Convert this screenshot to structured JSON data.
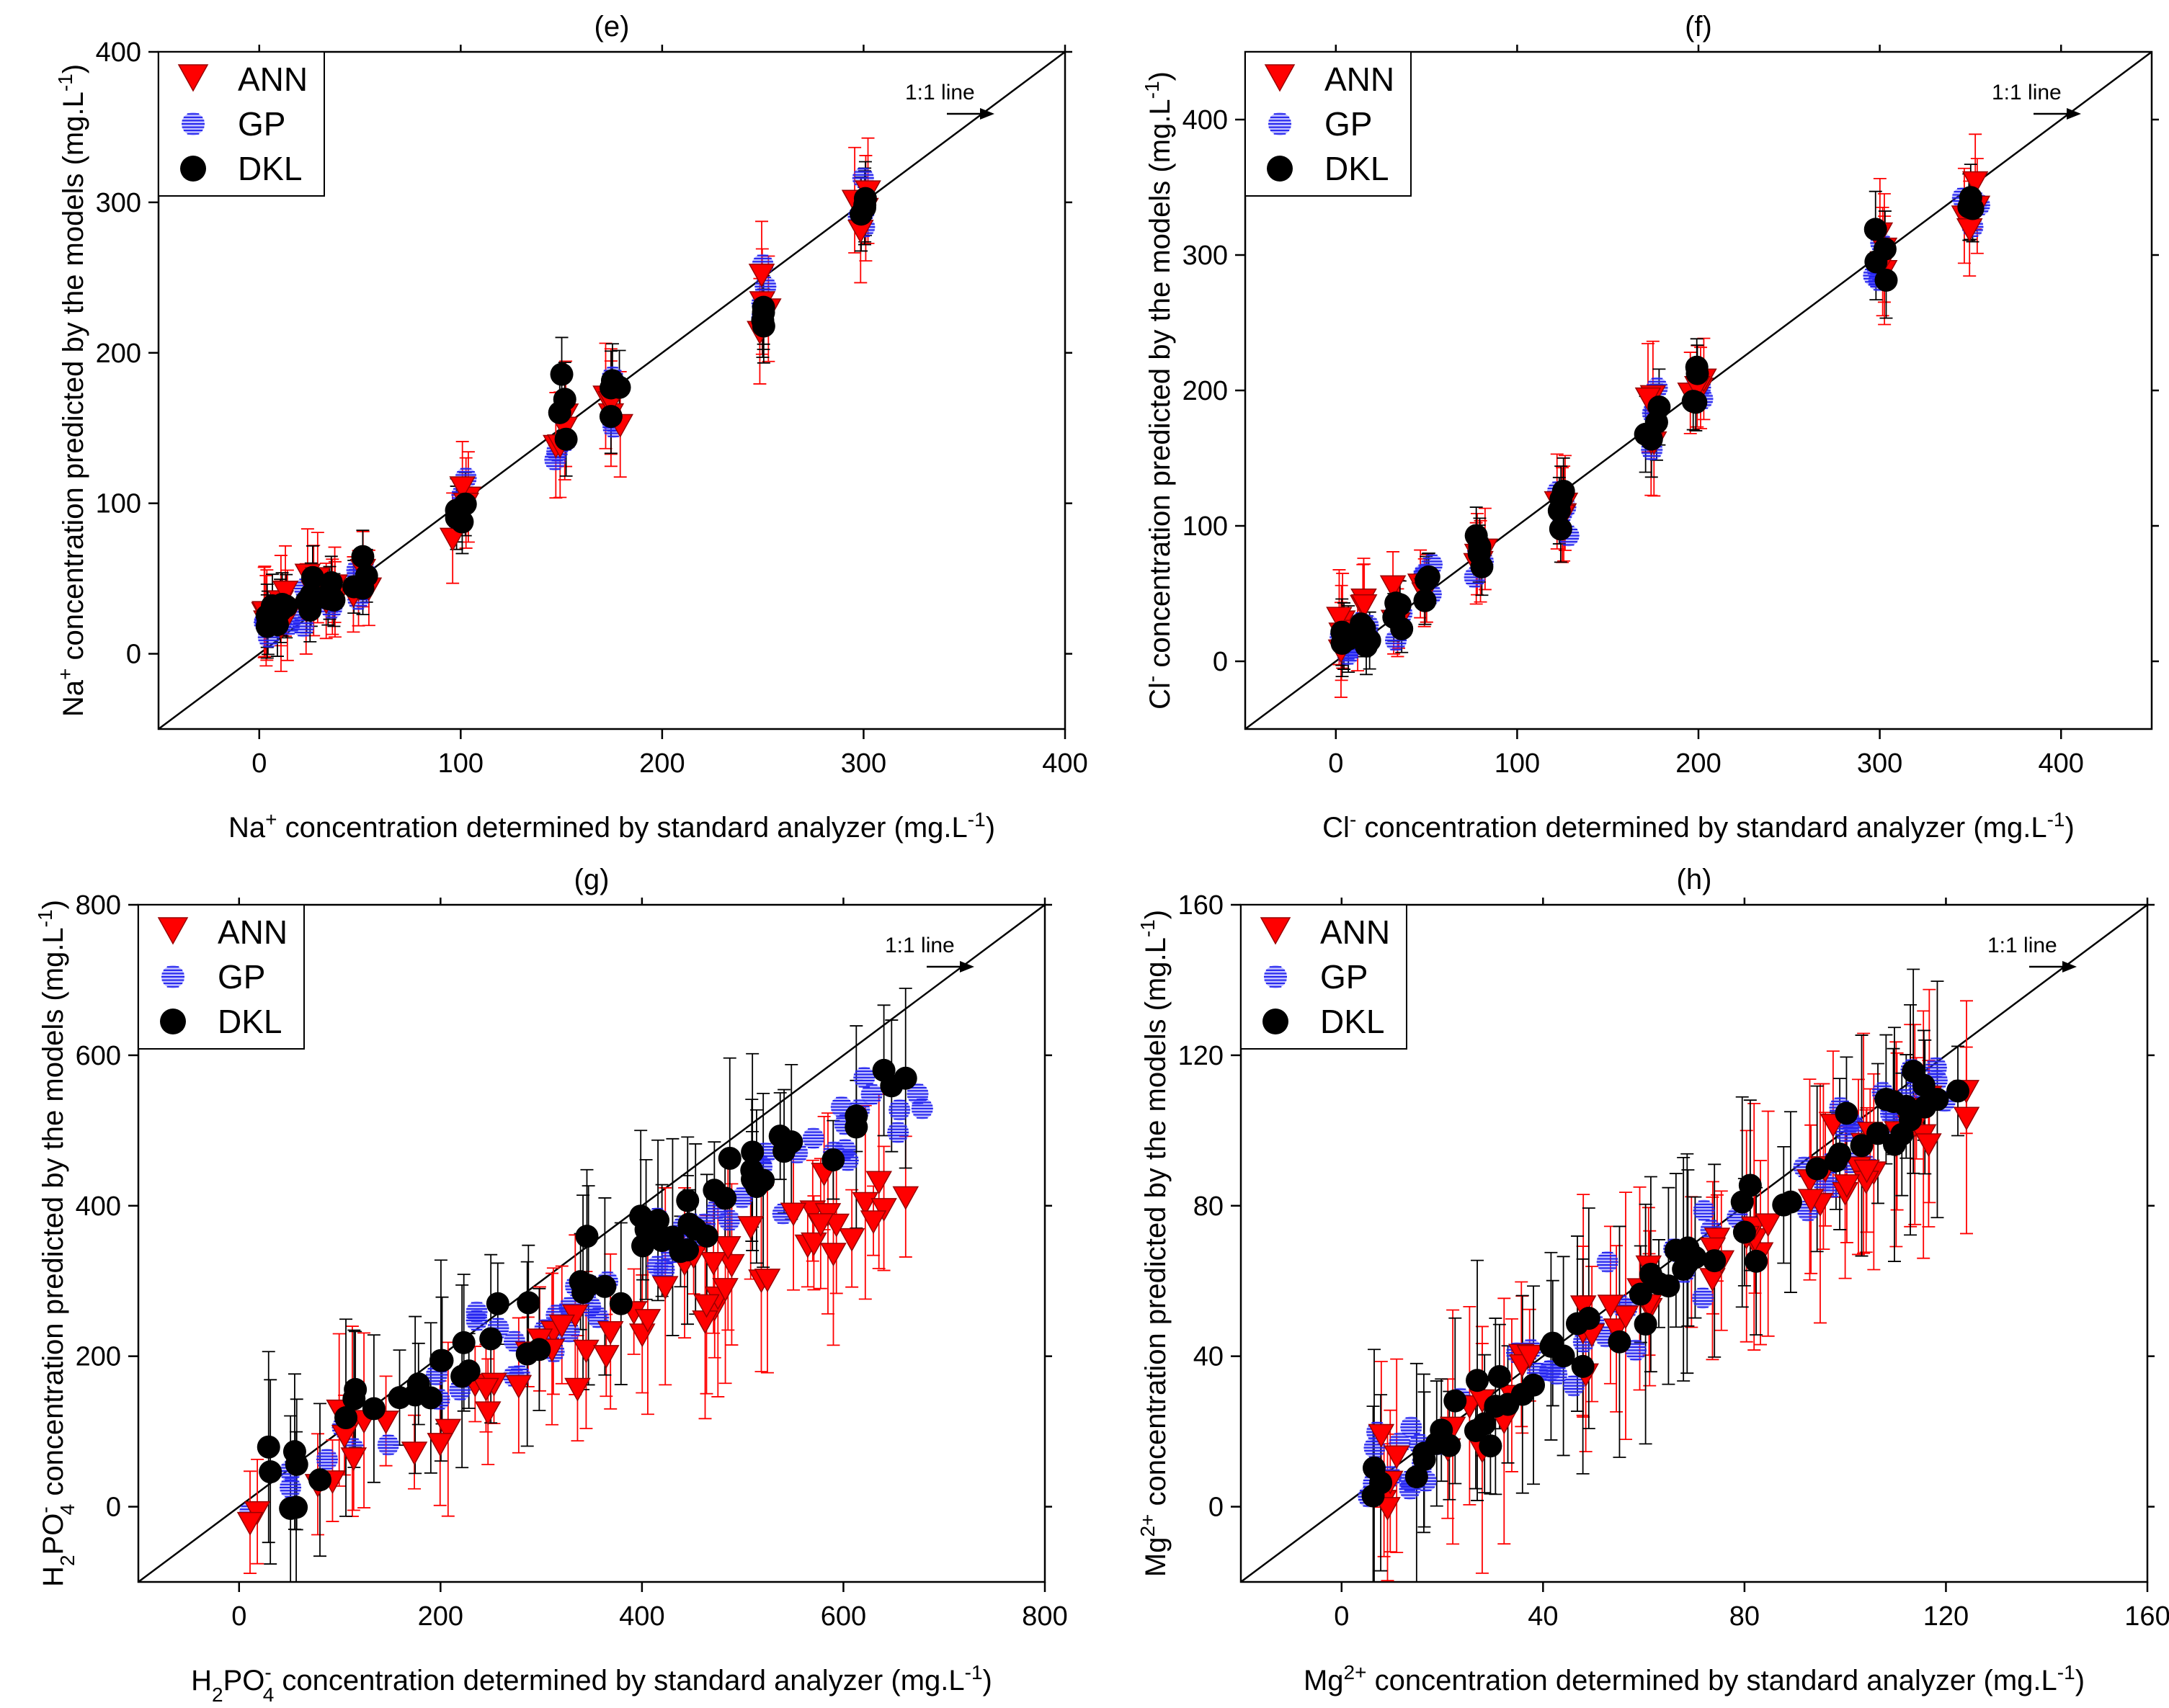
{
  "figure": {
    "description_free": true
  },
  "colors": {
    "ann": "#ff0000",
    "gp": "#2222ee",
    "dkl": "#000000",
    "line": "#000000"
  },
  "chart_data": [
    {
      "id": "e",
      "type": "scatter",
      "title": "(e)",
      "xlabel": {
        "pre": "Na",
        "sup": "+",
        "sub": "",
        "mid": " concentration determined by standard analyzer (mg.L",
        "exp": "-1",
        "post": ")"
      },
      "ylabel": {
        "pre": "Na",
        "sup": "+",
        "sub": "",
        "mid": " concentration predicted by the models (mg.L",
        "exp": "-1",
        "post": ")"
      },
      "xlim": [
        -50,
        400
      ],
      "ylim": [
        -50,
        400
      ],
      "xticks": [
        0,
        100,
        200,
        300,
        400
      ],
      "xtick_labels": [
        "0",
        "100",
        "200",
        "300",
        "400"
      ],
      "yticks": [
        0,
        100,
        200,
        300,
        400
      ],
      "ytick_labels": [
        "0",
        "100",
        "200",
        "300",
        "400"
      ],
      "legend": [
        "ANN",
        "GP",
        "DKL"
      ],
      "legend_position": "top-left",
      "reference_line": "1:1 line",
      "clusters": [
        [
          5,
          25,
          18,
          30
        ],
        [
          12,
          30,
          20,
          30
        ],
        [
          25,
          40,
          25,
          30
        ],
        [
          35,
          35,
          15,
          25
        ],
        [
          50,
          50,
          15,
          25
        ],
        [
          100,
          95,
          25,
          30
        ],
        [
          150,
          150,
          25,
          35
        ],
        [
          175,
          160,
          25,
          35
        ],
        [
          250,
          225,
          30,
          35
        ],
        [
          300,
          290,
          25,
          35
        ]
      ],
      "seed": 11
    },
    {
      "id": "f",
      "type": "scatter",
      "title": "(f)",
      "xlabel": {
        "pre": "Cl",
        "sup": "-",
        "sub": "",
        "mid": " concentration determined by standard analyzer (mg.L",
        "exp": "-1",
        "post": ")"
      },
      "ylabel": {
        "pre": "Cl",
        "sup": "-",
        "sub": "",
        "mid": " concentration predicted by the models (mg.L",
        "exp": "-1",
        "post": ")"
      },
      "xlim": [
        -50,
        450
      ],
      "ylim": [
        -50,
        450
      ],
      "xticks": [
        0,
        100,
        200,
        300,
        400
      ],
      "xtick_labels": [
        "0",
        "100",
        "200",
        "300",
        "400"
      ],
      "yticks": [
        0,
        100,
        200,
        300,
        400
      ],
      "ytick_labels": [
        "0",
        "100",
        "200",
        "300",
        "400"
      ],
      "legend": [
        "ANN",
        "GP",
        "DKL"
      ],
      "legend_position": "top-left",
      "reference_line": "1:1 line",
      "clusters": [
        [
          5,
          20,
          18,
          35
        ],
        [
          15,
          25,
          20,
          30
        ],
        [
          35,
          35,
          15,
          25
        ],
        [
          50,
          60,
          15,
          25
        ],
        [
          80,
          75,
          18,
          30
        ],
        [
          125,
          115,
          20,
          35
        ],
        [
          175,
          175,
          30,
          40
        ],
        [
          200,
          200,
          20,
          30
        ],
        [
          300,
          300,
          30,
          40
        ],
        [
          350,
          335,
          20,
          35
        ]
      ],
      "seed": 23
    },
    {
      "id": "g",
      "type": "scatter",
      "title": "(g)",
      "xlabel": {
        "pre": "H",
        "sup": "-",
        "sub": "2",
        "mid": "PO",
        "sub2": "4",
        "mid2": " concentration determined by standard analyzer (mg.L",
        "exp": "-1",
        "post": ")"
      },
      "ylabel": {
        "pre": "H",
        "sup": "-",
        "sub": "2",
        "mid": "PO",
        "sub2": "4",
        "mid2": " concentration predicted by the models (mg.L",
        "exp": "-1",
        "post": ")"
      },
      "xlim": [
        -100,
        800
      ],
      "ylim": [
        -100,
        800
      ],
      "xticks": [
        0,
        200,
        400,
        600,
        800
      ],
      "xtick_labels": [
        "0",
        "200",
        "400",
        "600",
        "800"
      ],
      "yticks": [
        0,
        200,
        400,
        600,
        800
      ],
      "ytick_labels": [
        "0",
        "200",
        "400",
        "600",
        "800"
      ],
      "legend": [
        "ANN",
        "GP",
        "DKL"
      ],
      "legend_position": "top-left",
      "reference_line": "1:1 line",
      "spread": {
        "x_min": 5,
        "x_max": 680,
        "count": 60,
        "ann_slope": 0.65,
        "gp_slope": 0.82,
        "dkl_slope": 0.86,
        "noise": 60,
        "err": 90
      },
      "seed": 37
    },
    {
      "id": "h",
      "type": "scatter",
      "title": "(h)",
      "xlabel": {
        "pre": "Mg",
        "sup": "2+",
        "sub": "",
        "mid": " concentration determined by standard analyzer (mg.L",
        "exp": "-1",
        "post": ")"
      },
      "ylabel": {
        "pre": "Mg",
        "sup": "2+",
        "sub": "",
        "mid": " concentration predicted by the models (mg.L",
        "exp": "-1",
        "post": ")"
      },
      "xlim": [
        -20,
        160
      ],
      "ylim": [
        -20,
        160
      ],
      "xticks": [
        0,
        40,
        80,
        120,
        160
      ],
      "xtick_labels": [
        "0",
        "40",
        "80",
        "120",
        "160"
      ],
      "yticks": [
        0,
        40,
        80,
        120,
        160
      ],
      "ytick_labels": [
        "0",
        "40",
        "80",
        "120",
        "160"
      ],
      "legend": [
        "ANN",
        "GP",
        "DKL"
      ],
      "legend_position": "top-left",
      "reference_line": "1:1 line",
      "spread": {
        "x_min": 5,
        "x_max": 125,
        "count": 60,
        "ann_slope": 0.9,
        "gp_slope": 0.95,
        "dkl_slope": 0.93,
        "noise": 12,
        "err": 22
      },
      "seed": 51
    }
  ]
}
